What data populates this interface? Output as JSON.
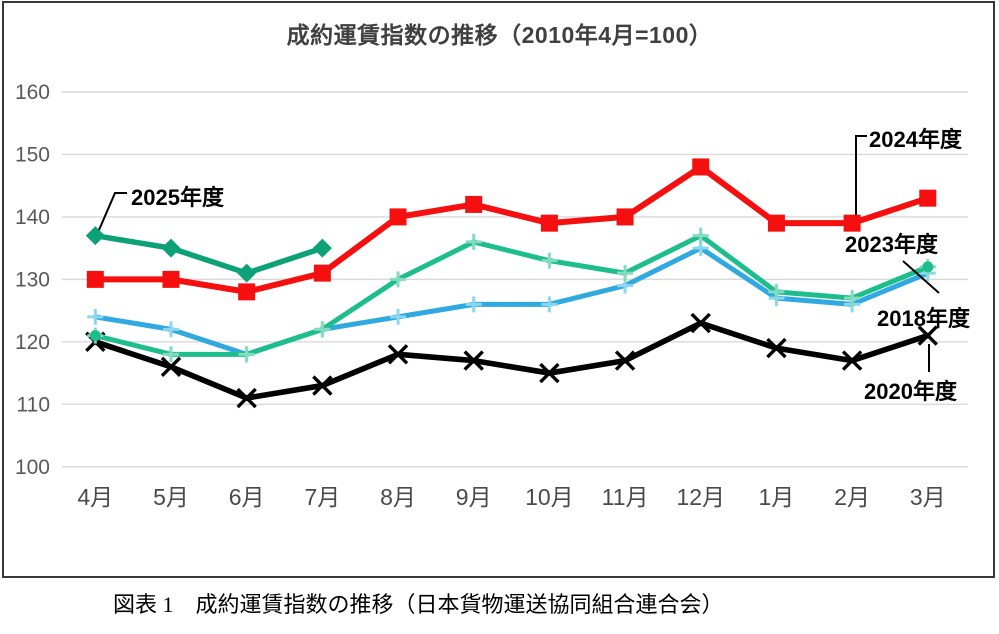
{
  "chart_data": {
    "type": "line",
    "title": "成約運賃指数の推移（2010年4月=100）",
    "caption": "図表 1　成約運賃指数の推移（日本貨物運送協同組合連合会）",
    "categories": [
      "4月",
      "5月",
      "6月",
      "7月",
      "8月",
      "9月",
      "10月",
      "11月",
      "12月",
      "1月",
      "2月",
      "3月"
    ],
    "ylim": [
      100,
      160
    ],
    "yticks": [
      100,
      110,
      120,
      130,
      140,
      150,
      160
    ],
    "grid": "horizontal-only",
    "legend_position": "annotations-on-chart",
    "series": [
      {
        "name": "2018年度",
        "color": "#2fa9e0",
        "marker": "plus",
        "marker_color": "#8bd7ef",
        "values": [
          124,
          122,
          118,
          122,
          124,
          126,
          126,
          129,
          135,
          127,
          126,
          131
        ]
      },
      {
        "name": "2020年度",
        "color": "#000000",
        "marker": "x",
        "marker_color": "#000000",
        "values": [
          120,
          116,
          111,
          113,
          118,
          117,
          115,
          117,
          123,
          119,
          117,
          121
        ]
      },
      {
        "name": "2023年度",
        "color": "#1dbd8d",
        "marker": "plus",
        "marker_color": "#83dcbe",
        "end_dot_points": [
          0,
          11
        ],
        "values": [
          121,
          118,
          118,
          122,
          130,
          136,
          133,
          131,
          137,
          128,
          127,
          132
        ]
      },
      {
        "name": "2024年度",
        "color": "#f50f0f",
        "marker": "square",
        "marker_color": "#f50f0f",
        "values": [
          130,
          130,
          128,
          131,
          140,
          142,
          139,
          140,
          148,
          139,
          139,
          143
        ]
      },
      {
        "name": "2025年度",
        "color": "#0ca176",
        "marker": "diamond",
        "marker_color": "#0ca176",
        "values": [
          137,
          135,
          131,
          135,
          null,
          null,
          null,
          null,
          null,
          null,
          null,
          null
        ]
      }
    ],
    "annotations": [
      {
        "id": "2025",
        "label": "2025年度",
        "series": "2025年度",
        "point": 0
      },
      {
        "id": "2024",
        "label": "2024年度",
        "series": "2024年度",
        "point": 10
      },
      {
        "id": "2023",
        "label": "2023年度",
        "series": "2023年度",
        "point": 11
      },
      {
        "id": "2018",
        "label": "2018年度",
        "series": "2018年度",
        "point": 11
      },
      {
        "id": "2020",
        "label": "2020年度",
        "series": "2020年度",
        "point": 11
      }
    ],
    "colors": {
      "gridline": "#d9d9d9",
      "frame_border": "#383838",
      "axis_text": "#595959",
      "x_axis_text": "#4a4a4a",
      "title_text": "#404040",
      "annotation_text": "#000000"
    }
  }
}
